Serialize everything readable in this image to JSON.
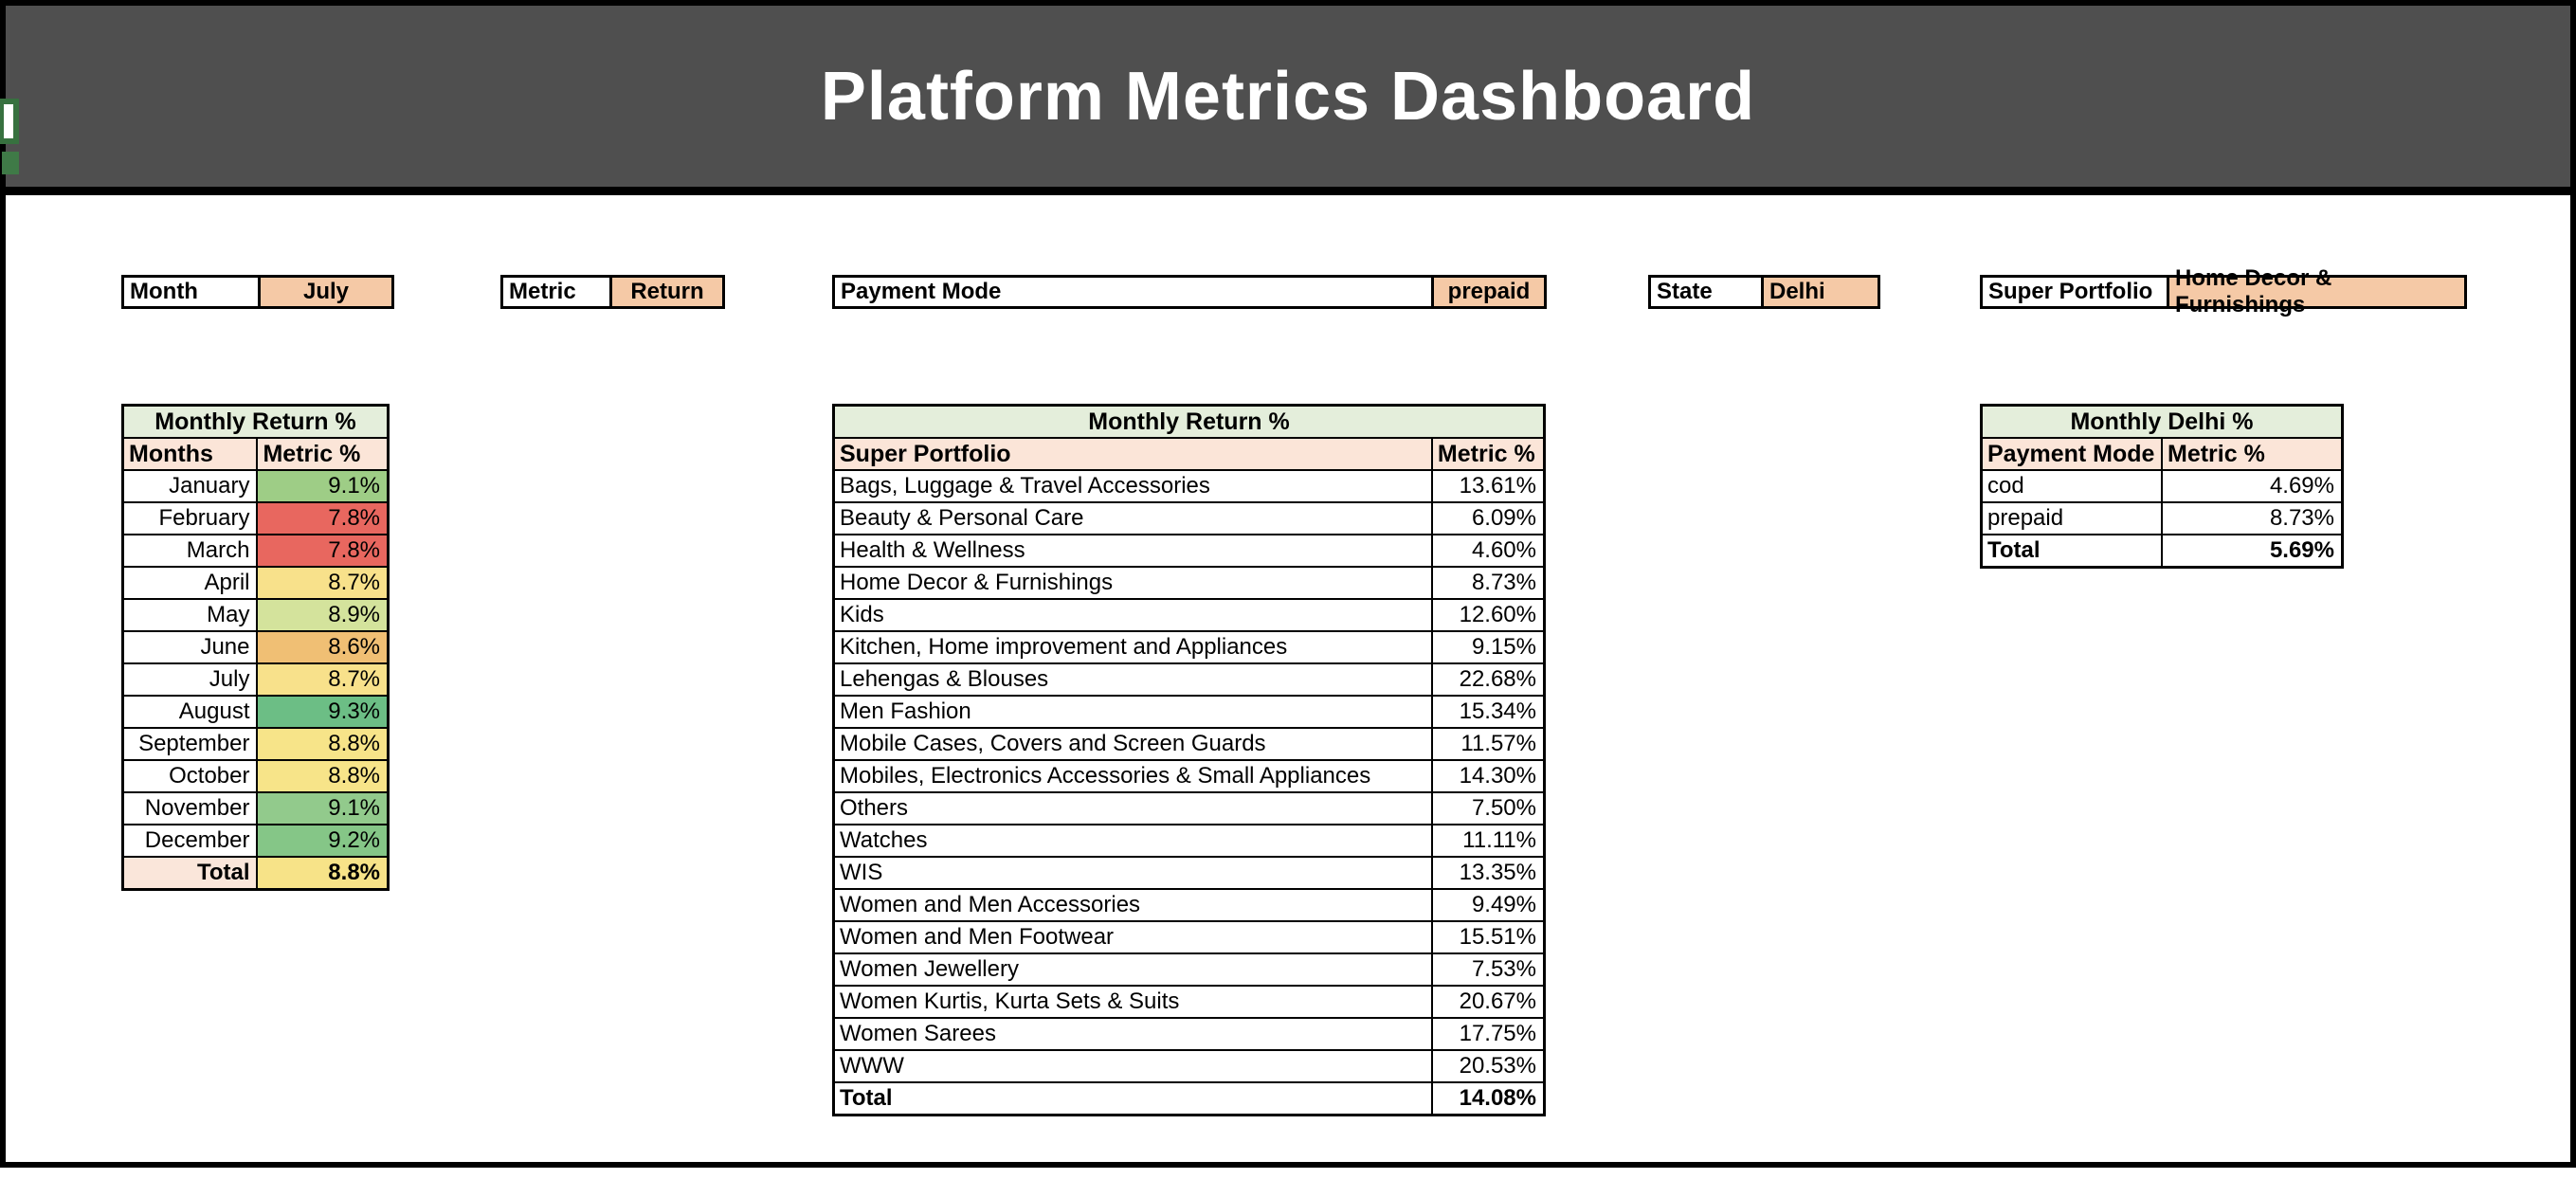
{
  "title": "Platform Metrics Dashboard",
  "filters": {
    "month": {
      "label": "Month",
      "value": "July"
    },
    "metric": {
      "label": "Metric",
      "value": "Return"
    },
    "payment": {
      "label": "Payment Mode",
      "value": "prepaid"
    },
    "state": {
      "label": "State",
      "value": "Delhi"
    },
    "super_portfolio": {
      "label": "Super Portfolio",
      "value": "Home Decor & Furnishings"
    }
  },
  "monthly_table": {
    "title": "Monthly Return %",
    "columns": [
      "Months",
      "Metric %"
    ],
    "rows": [
      {
        "label": "January",
        "value": "9.1%",
        "color": "#9ECD86"
      },
      {
        "label": "February",
        "value": "7.8%",
        "color": "#E8675F"
      },
      {
        "label": "March",
        "value": "7.8%",
        "color": "#E8675F"
      },
      {
        "label": "April",
        "value": "8.7%",
        "color": "#F8E18B"
      },
      {
        "label": "May",
        "value": "8.9%",
        "color": "#D4E39C"
      },
      {
        "label": "June",
        "value": "8.6%",
        "color": "#F0BF74"
      },
      {
        "label": "July",
        "value": "8.7%",
        "color": "#F8E18B"
      },
      {
        "label": "August",
        "value": "9.3%",
        "color": "#6CBE85"
      },
      {
        "label": "September",
        "value": "8.8%",
        "color": "#F7E489"
      },
      {
        "label": "October",
        "value": "8.8%",
        "color": "#F7E489"
      },
      {
        "label": "November",
        "value": "9.1%",
        "color": "#92CA8C"
      },
      {
        "label": "December",
        "value": "9.2%",
        "color": "#85C687"
      }
    ],
    "total": {
      "label": "Total",
      "value": "8.8%",
      "color": "#F7E388"
    }
  },
  "portfolio_table": {
    "title": "Monthly Return %",
    "columns": [
      "Super Portfolio",
      "Metric %"
    ],
    "rows": [
      {
        "label": "Bags, Luggage & Travel Accessories",
        "value": "13.61%"
      },
      {
        "label": "Beauty & Personal Care",
        "value": "6.09%"
      },
      {
        "label": "Health & Wellness",
        "value": "4.60%"
      },
      {
        "label": "Home Decor & Furnishings",
        "value": "8.73%"
      },
      {
        "label": "Kids",
        "value": "12.60%"
      },
      {
        "label": "Kitchen, Home improvement and Appliances",
        "value": "9.15%"
      },
      {
        "label": "Lehengas & Blouses",
        "value": "22.68%"
      },
      {
        "label": "Men Fashion",
        "value": "15.34%"
      },
      {
        "label": "Mobile Cases, Covers and Screen Guards",
        "value": "11.57%"
      },
      {
        "label": "Mobiles, Electronics Accessories & Small Appliances",
        "value": "14.30%"
      },
      {
        "label": "Others",
        "value": "7.50%"
      },
      {
        "label": "Watches",
        "value": "11.11%"
      },
      {
        "label": "WIS",
        "value": "13.35%"
      },
      {
        "label": "Women and Men Accessories",
        "value": "9.49%"
      },
      {
        "label": "Women and Men Footwear",
        "value": "15.51%"
      },
      {
        "label": "Women Jewellery",
        "value": "7.53%"
      },
      {
        "label": "Women Kurtis, Kurta Sets & Suits",
        "value": "20.67%"
      },
      {
        "label": "Women Sarees",
        "value": "17.75%"
      },
      {
        "label": "WWW",
        "value": "20.53%"
      }
    ],
    "total": {
      "label": "Total",
      "value": "14.08%"
    }
  },
  "delhi_table": {
    "title": "Monthly Delhi %",
    "columns": [
      "Payment Mode",
      "Metric %"
    ],
    "rows": [
      {
        "label": "cod",
        "value": "4.69%"
      },
      {
        "label": "prepaid",
        "value": "8.73%"
      }
    ],
    "total": {
      "label": "Total",
      "value": "5.69%"
    }
  },
  "colors": {
    "header_band": "#4F4F4F",
    "filter_value_bg": "#F5C9A6",
    "table_title_bg": "#E4EEDB",
    "table_header_bg": "#FBE5D8",
    "total_label_bg": "#FAE6DA",
    "edge_artifact_green": "#3F7A47"
  }
}
